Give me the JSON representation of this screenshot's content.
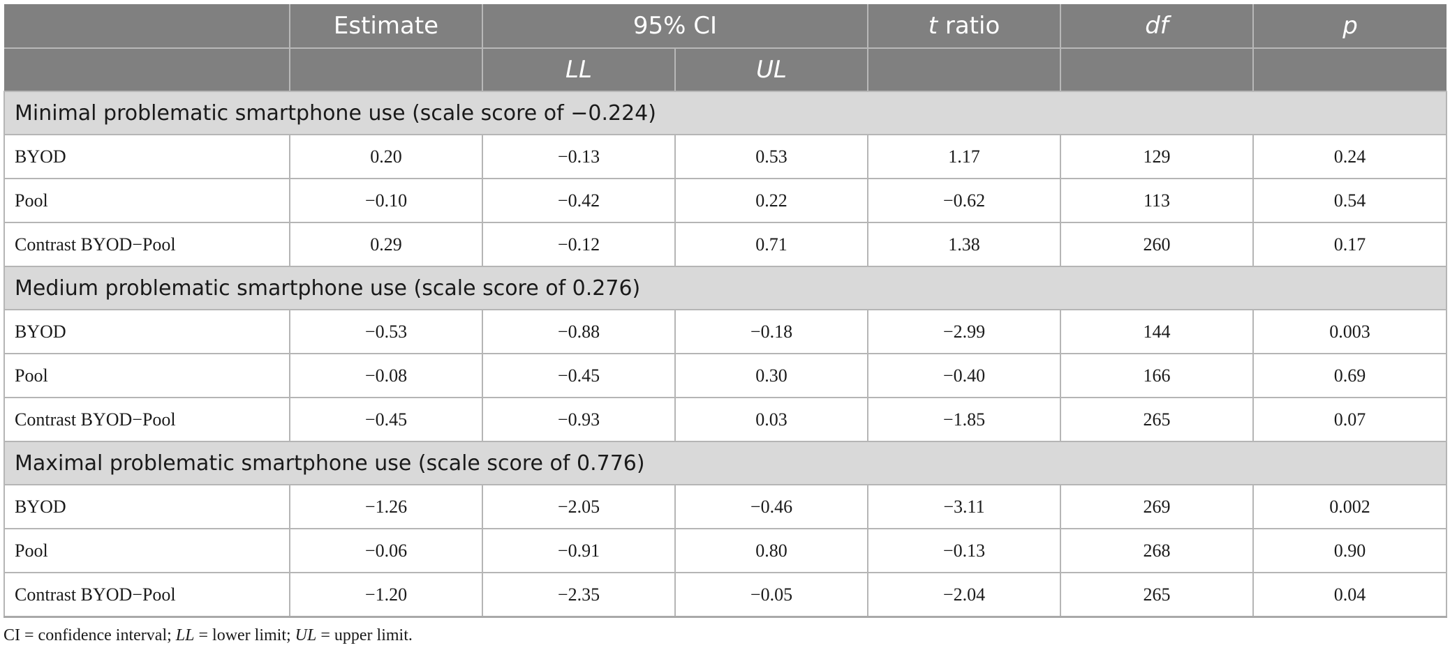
{
  "header": {
    "row1": [
      "",
      "Estimate",
      "95% CI",
      "t ratio",
      "df",
      "p"
    ],
    "row2": [
      "",
      "",
      "LL",
      "UL",
      "",
      "",
      ""
    ]
  },
  "groups": [
    {
      "title": "Minimal problematic smartphone use (scale score of −0.224)",
      "rows": [
        {
          "label": "BYOD",
          "estimate": "0.20",
          "ll": "−0.13",
          "ul": "0.53",
          "t": "1.17",
          "df": "129",
          "p": "0.24"
        },
        {
          "label": "Pool",
          "estimate": "−0.10",
          "ll": "−0.42",
          "ul": "0.22",
          "t": "−0.62",
          "df": "113",
          "p": "0.54"
        },
        {
          "label": "Contrast BYOD−Pool",
          "estimate": "0.29",
          "ll": "−0.12",
          "ul": "0.71",
          "t": "1.38",
          "df": "260",
          "p": "0.17"
        }
      ]
    },
    {
      "title": "Medium problematic smartphone use (scale score of 0.276)",
      "rows": [
        {
          "label": "BYOD",
          "estimate": "−0.53",
          "ll": "−0.88",
          "ul": "−0.18",
          "t": "−2.99",
          "df": "144",
          "p": "0.003"
        },
        {
          "label": "Pool",
          "estimate": "−0.08",
          "ll": "−0.45",
          "ul": "0.30",
          "t": "−0.40",
          "df": "166",
          "p": "0.69"
        },
        {
          "label": "Contrast BYOD−Pool",
          "estimate": "−0.45",
          "ll": "−0.93",
          "ul": "0.03",
          "t": "−1.85",
          "df": "265",
          "p": "0.07"
        }
      ]
    },
    {
      "title": "Maximal problematic smartphone use (scale score of 0.776)",
      "rows": [
        {
          "label": "BYOD",
          "estimate": "−1.26",
          "ll": "−2.05",
          "ul": "−0.46",
          "t": "−3.11",
          "df": "269",
          "p": "0.002"
        },
        {
          "label": "Pool",
          "estimate": "−0.06",
          "ll": "−0.91",
          "ul": "0.80",
          "t": "−0.13",
          "df": "268",
          "p": "0.90"
        },
        {
          "label": "Contrast BYOD−Pool",
          "estimate": "−1.20",
          "ll": "−2.35",
          "ul": "−0.05",
          "t": "−2.04",
          "df": "265",
          "p": "0.04"
        }
      ]
    }
  ],
  "note": {
    "p1": "CI = confidence interval; ",
    "ll": "LL",
    "p2": " = lower limit; ",
    "ul": "UL",
    "p3": " = upper limit."
  },
  "colors": {
    "header_bg": "#808080",
    "group_bg": "#d9d9d9",
    "border": "#b5b5b5"
  }
}
